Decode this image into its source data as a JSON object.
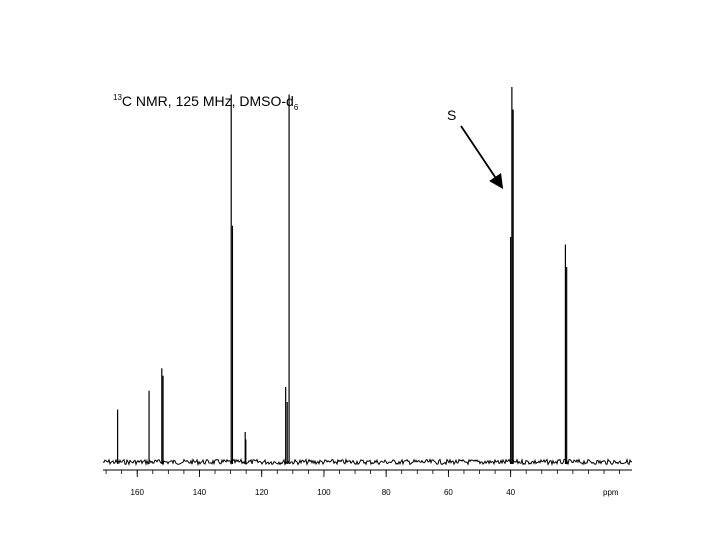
{
  "chart_data": {
    "type": "line",
    "title_parts": {
      "isotope_mass": "13",
      "text": "C NMR, 125 MHz, DMSO-d",
      "subscript": "6"
    },
    "xlabel": "ppm",
    "ylabel": "",
    "xlim": [
      171,
      1
    ],
    "x_direction": "reversed",
    "ylim": [
      0,
      1
    ],
    "x_ticks": [
      160,
      140,
      120,
      100,
      80,
      60,
      40
    ],
    "x_tick_labels": [
      "160",
      "140",
      "120",
      "100",
      "80",
      "60",
      "40"
    ],
    "series": [
      {
        "peaks": [
          {
            "ppm": 166.3,
            "height": 0.14
          },
          {
            "ppm": 156.2,
            "height": 0.19
          },
          {
            "ppm": 152.1,
            "height": 0.25
          },
          {
            "ppm": 151.7,
            "height": 0.23
          },
          {
            "ppm": 129.8,
            "height": 0.98
          },
          {
            "ppm": 129.4,
            "height": 0.63
          },
          {
            "ppm": 125.3,
            "height": 0.08
          },
          {
            "ppm": 125.1,
            "height": 0.06
          },
          {
            "ppm": 112.3,
            "height": 0.2
          },
          {
            "ppm": 111.8,
            "height": 0.16
          },
          {
            "ppm": 111.2,
            "height": 0.98
          },
          {
            "ppm": 40.0,
            "height": 0.6
          },
          {
            "ppm": 39.6,
            "height": 1.0
          },
          {
            "ppm": 39.2,
            "height": 0.94
          },
          {
            "ppm": 22.4,
            "height": 0.58
          },
          {
            "ppm": 22.0,
            "height": 0.52
          }
        ]
      }
    ],
    "annotations": [
      {
        "text": "S",
        "arrow_target_ppm": 40.5
      }
    ],
    "grid": false,
    "legend": "none"
  }
}
